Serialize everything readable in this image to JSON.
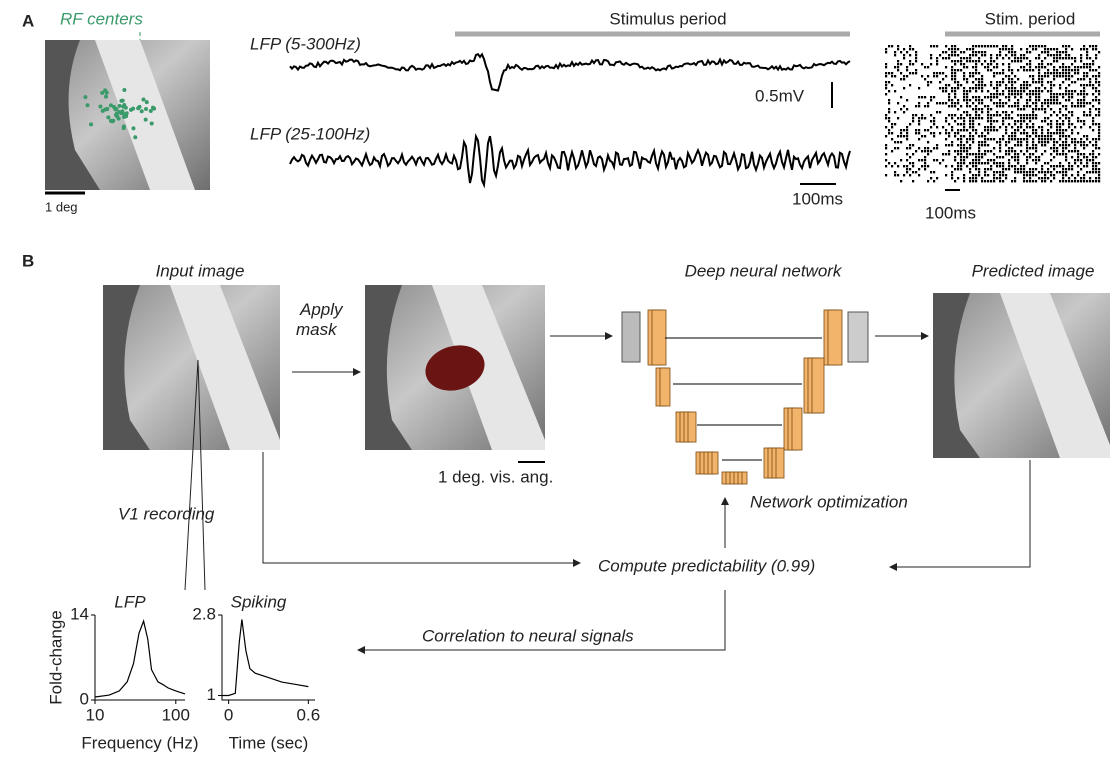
{
  "panel_a": {
    "label": "A",
    "rf_centers": "RF centers",
    "deg_scale": "1 deg",
    "lfp_broad": "LFP (5-300Hz)",
    "lfp_gamma": "LFP (25-100Hz)",
    "stimulus_period": "Stimulus period",
    "voltage_scale": "0.5mV",
    "time_scale": "100ms",
    "raster_period": "Stim. period",
    "raster_time_scale": "100ms"
  },
  "panel_b": {
    "label": "B",
    "input_image": "Input image",
    "apply_mask": [
      "Apply",
      "mask"
    ],
    "vis_angle": "1 deg. vis. ang.",
    "network": "Deep neural network",
    "predicted_image": "Predicted image",
    "optimization": "Network optimization",
    "v1_recording": "V1 recording",
    "predictability": "Compute predictability (0.99)",
    "correlation": "Correlation to neural signals"
  },
  "chart_data": [
    {
      "type": "line",
      "title": "LFP",
      "xlabel": "Frequency (Hz)",
      "ylabel": "Fold-change",
      "log_x": true,
      "x": [
        10,
        15,
        20,
        25,
        30,
        35,
        40,
        45,
        50,
        60,
        70,
        80,
        100,
        130
      ],
      "values": [
        0.5,
        0.8,
        1.5,
        3,
        6,
        11,
        13,
        10,
        5,
        3,
        2.5,
        2,
        1.5,
        1
      ],
      "xlim": [
        10,
        130
      ],
      "ylim": [
        0,
        14
      ],
      "xticks": [
        10,
        100
      ],
      "yticks": [
        0,
        14
      ]
    },
    {
      "type": "line",
      "title": "Spiking",
      "xlabel": "Time (sec)",
      "log_x": false,
      "x": [
        -0.05,
        0.0,
        0.05,
        0.08,
        0.1,
        0.13,
        0.16,
        0.2,
        0.3,
        0.4,
        0.5,
        0.6
      ],
      "values": [
        1,
        1,
        1.05,
        2.2,
        2.7,
        2.0,
        1.6,
        1.5,
        1.4,
        1.3,
        1.25,
        1.2
      ],
      "xlim": [
        -0.05,
        0.65
      ],
      "ylim": [
        0.9,
        2.8
      ],
      "xticks": [
        0,
        0.6
      ],
      "yticks": [
        1,
        2.8
      ]
    }
  ]
}
